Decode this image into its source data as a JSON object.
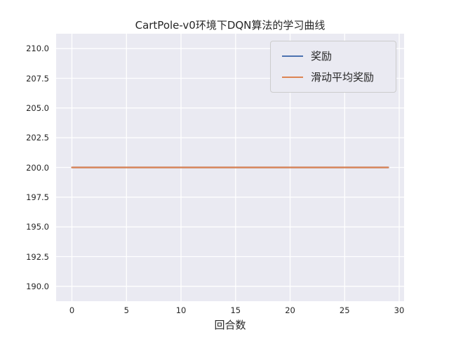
{
  "figure": {
    "background_color": "#ffffff"
  },
  "chart_data": {
    "type": "line",
    "title": "CartPole-v0环境下DQN算法的学习曲线",
    "xlabel": "回合数",
    "ylabel": "",
    "x": [
      0,
      1,
      2,
      3,
      4,
      5,
      6,
      7,
      8,
      9,
      10,
      11,
      12,
      13,
      14,
      15,
      16,
      17,
      18,
      19,
      20,
      21,
      22,
      23,
      24,
      25,
      26,
      27,
      28,
      29
    ],
    "series": [
      {
        "name": "奖励",
        "color": "#4c72b0",
        "values": [
          200,
          200,
          200,
          200,
          200,
          200,
          200,
          200,
          200,
          200,
          200,
          200,
          200,
          200,
          200,
          200,
          200,
          200,
          200,
          200,
          200,
          200,
          200,
          200,
          200,
          200,
          200,
          200,
          200,
          200
        ]
      },
      {
        "name": "滑动平均奖励",
        "color": "#dd8452",
        "values": [
          200,
          200,
          200,
          200,
          200,
          200,
          200,
          200,
          200,
          200,
          200,
          200,
          200,
          200,
          200,
          200,
          200,
          200,
          200,
          200,
          200,
          200,
          200,
          200,
          200,
          200,
          200,
          200,
          200,
          200
        ]
      }
    ],
    "xlim": [
      -1.45,
      30.45
    ],
    "ylim": [
      188.75,
      211.25
    ],
    "x_ticks": [
      0,
      5,
      10,
      15,
      20,
      25,
      30
    ],
    "x_tick_labels": [
      "0",
      "5",
      "10",
      "15",
      "20",
      "25",
      "30"
    ],
    "y_ticks": [
      190.0,
      192.5,
      195.0,
      197.5,
      200.0,
      202.5,
      205.0,
      207.5,
      210.0
    ],
    "y_tick_labels": [
      "190.0",
      "192.5",
      "195.0",
      "197.5",
      "200.0",
      "202.5",
      "205.0",
      "207.5",
      "210.0"
    ],
    "grid": true,
    "legend_position": "upper right",
    "plot_bg_color": "#eaeaf2",
    "grid_color": "#ffffff",
    "line_width": 2.2,
    "legend_bg_color": "#eaeaf2",
    "legend_border_color": "#cccccc"
  }
}
